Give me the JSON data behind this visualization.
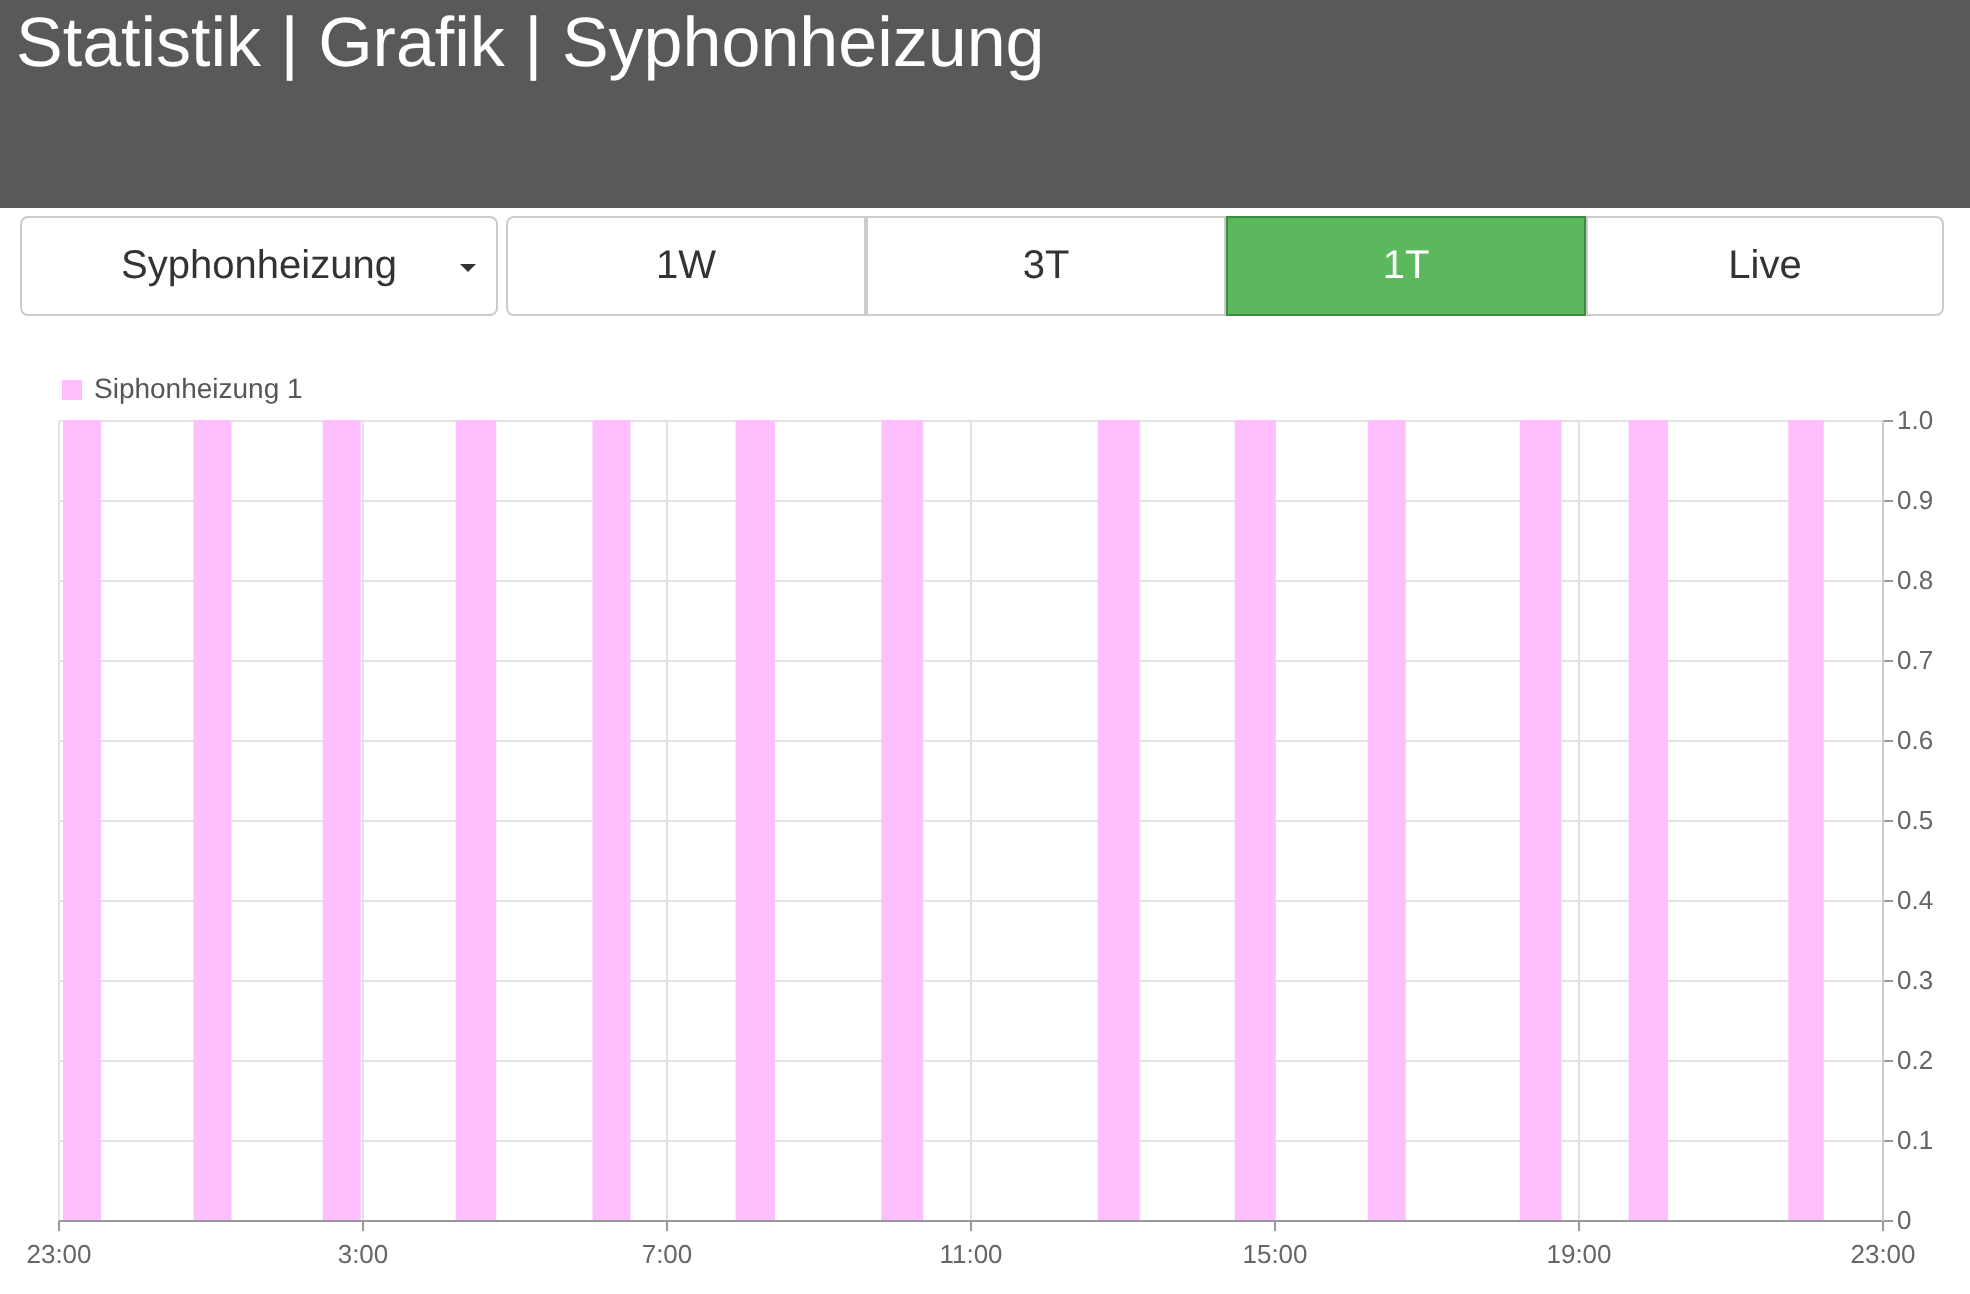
{
  "chart_data": {
    "type": "area",
    "title": "Statistik | Grafik | Syphonheizung",
    "annotations": [
      "Syphonheizung",
      "1W",
      "3T",
      "1T",
      "Live"
    ],
    "x": [
      "--01-01T23:00",
      "--01-01T23:04",
      "--01-01T23:04",
      "--01-01T23:34",
      "--01-01T23:34",
      "--01-02T00:47",
      "--01-02T00:47",
      "--01-02T01:17",
      "--01-02T01:17",
      "--01-02T02:29",
      "--01-02T02:29",
      "--01-02T02:59",
      "--01-02T02:59",
      "--01-02T04:14",
      "--01-02T04:14",
      "--01-02T04:46",
      "--01-02T04:46",
      "--01-02T06:02",
      "--01-02T06:02",
      "--01-02T06:32",
      "--01-02T06:32",
      "--01-02T07:55",
      "--01-02T07:55",
      "--01-02T08:26",
      "--01-02T08:26",
      "--01-02T09:50",
      "--01-02T09:50",
      "--01-02T10:23",
      "--01-02T10:23",
      "--01-02T12:41",
      "--01-02T12:41",
      "--01-02T13:14",
      "--01-02T13:14",
      "--01-02T14:29",
      "--01-02T14:29",
      "--01-02T15:01",
      "--01-02T15:01",
      "--01-02T16:14",
      "--01-02T16:14",
      "--01-02T16:44",
      "--01-02T16:44",
      "--01-02T18:14",
      "--01-02T18:14",
      "--01-02T18:47",
      "--01-02T18:47",
      "--01-02T19:40",
      "--01-02T19:40",
      "--01-02T20:11",
      "--01-02T20:11",
      "--01-02T21:46",
      "--01-02T21:46",
      "--01-02T22:14",
      "--01-02T22:14",
      "--01-02T23:00"
    ],
    "series": [
      {
        "name": "Siphonheizung 1",
        "color": "#fdbffd",
        "values": [
          0,
          0,
          1,
          1,
          0,
          0,
          1,
          1,
          0,
          0,
          1,
          1,
          0,
          0,
          1,
          1,
          0,
          0,
          1,
          1,
          0,
          0,
          1,
          1,
          0,
          0,
          1,
          1,
          0,
          0,
          1,
          1,
          0,
          0,
          1,
          1,
          0,
          0,
          1,
          1,
          0,
          0,
          1,
          1,
          0,
          0,
          1,
          1,
          0,
          0,
          1,
          1,
          0,
          0
        ]
      }
    ],
    "xlim": [
      "--01-01T23:00",
      "--01-02T23:00"
    ],
    "xticks": [
      {
        "value": "--01-01T23:00",
        "label": "23:00"
      },
      {
        "value": "--01-02T03:00",
        "label": "3:00"
      },
      {
        "value": "--01-02T07:00",
        "label": "7:00"
      },
      {
        "value": "--01-02T11:00",
        "label": "11:00"
      },
      {
        "value": "--01-02T15:00",
        "label": "15:00"
      },
      {
        "value": "--01-02T19:00",
        "label": "19:00"
      },
      {
        "value": "--01-02T23:00",
        "label": "23:00"
      }
    ],
    "ylim": [
      0,
      1
    ],
    "yticks": [
      0,
      0.1,
      0.2,
      0.3,
      0.4,
      0.5,
      0.6,
      0.7,
      0.8,
      0.9,
      {
        "value": 1,
        "label": "1.0"
      }
    ],
    "grid": true,
    "legend": "top left"
  }
}
